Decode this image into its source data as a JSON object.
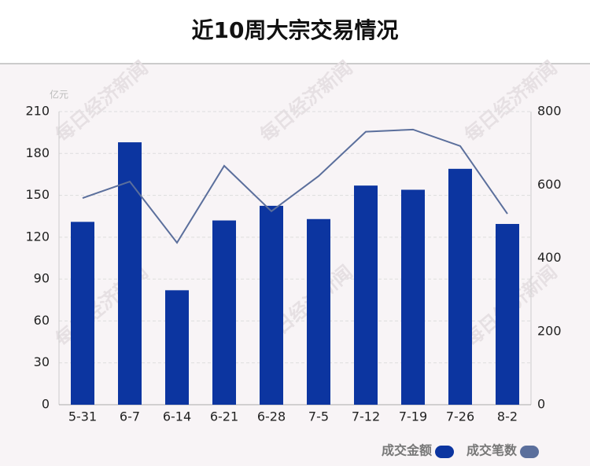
{
  "chart_data": {
    "type": "bar_line",
    "title": "近10周大宗交易情况",
    "y_unit": "亿元",
    "watermark": "每日经济新闻",
    "categories": [
      "5-31",
      "6-7",
      "6-14",
      "6-21",
      "6-28",
      "7-5",
      "7-12",
      "7-19",
      "7-26",
      "8-2"
    ],
    "series": [
      {
        "name": "成交金额",
        "color": "#0c35a0",
        "kind": "bar",
        "values": [
          131,
          188,
          82,
          132,
          142.5,
          133,
          157,
          154,
          169,
          129.5
        ]
      },
      {
        "name": "成交笔数",
        "color": "#5b6f9c",
        "kind": "line",
        "axis": "y2",
        "values": [
          564,
          609,
          442,
          652,
          528,
          624,
          745,
          751,
          706,
          521
        ]
      }
    ],
    "ylim": [
      0,
      210
    ],
    "yticks": [
      0,
      30,
      60,
      90,
      120,
      150,
      180,
      210
    ],
    "y2lim": [
      0,
      800
    ],
    "y2ticks": [
      0,
      200,
      400,
      600,
      800
    ],
    "grid": true
  }
}
